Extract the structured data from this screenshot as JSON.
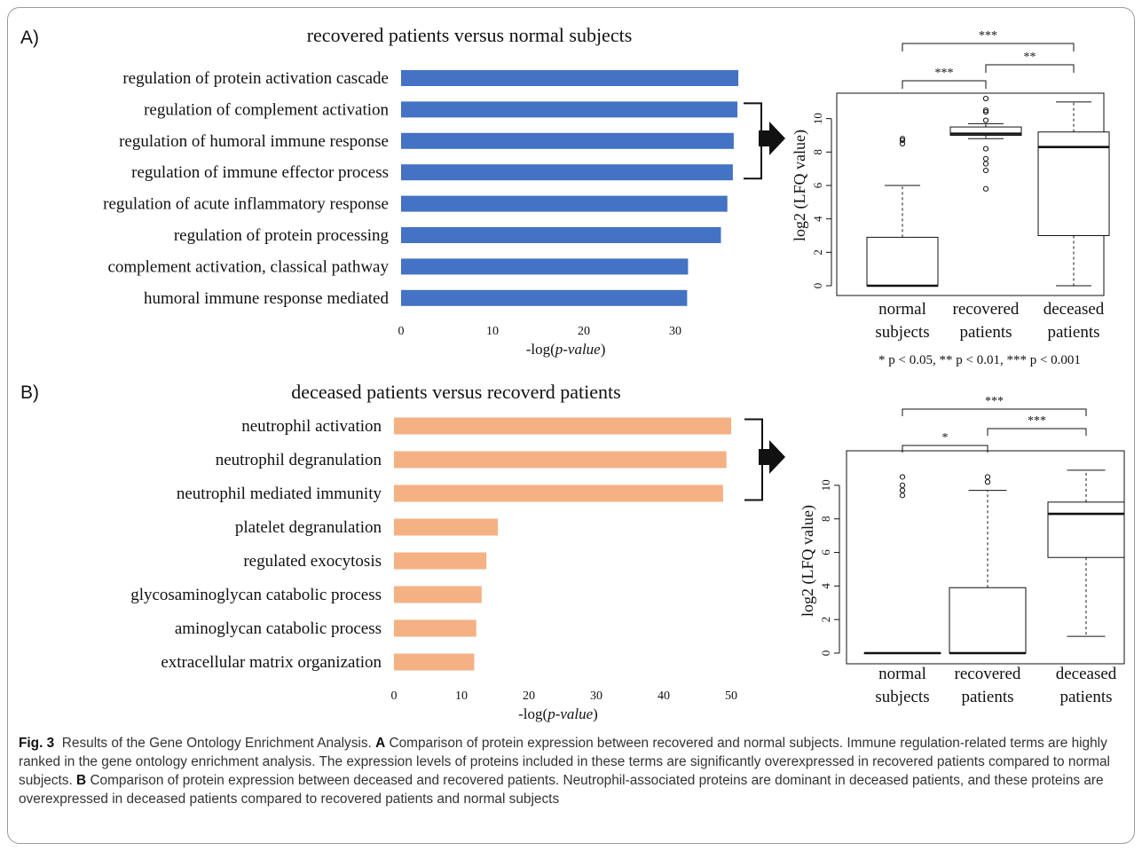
{
  "panels": [
    {
      "letter": "A)",
      "title": "recovered patients versus normal subjects",
      "bar_color": "#4472c4",
      "boxplot_note": "* p < 0.05, ** p < 0.01, *** p < 0.001"
    },
    {
      "letter": "B)",
      "title": "deceased patients versus recoverd patients",
      "bar_color": "#f4b183",
      "boxplot_note": ""
    }
  ],
  "caption": {
    "fig_label": "Fig. 3",
    "text1": "Results of the Gene Ontology Enrichment Analysis.",
    "labelA": "A",
    "textA": "Comparison of protein expression between recovered and normal subjects. Immune regulation-related terms are highly ranked in the gene ontology enrichment analysis. The expression levels of proteins included in these terms are significantly overexpressed in recovered patients compared to normal subjects.",
    "labelB": "B",
    "textB": "Comparison of protein expression between deceased and recovered patients. Neutrophil-associated proteins are dominant in deceased patients, and these proteins are overexpressed in deceased patients compared to recovered patients and normal subjects"
  },
  "chart_data": [
    {
      "type": "bar",
      "orientation": "horizontal",
      "title": "recovered patients versus normal subjects",
      "xlabel": "-log(p-value)",
      "xlim": [
        0,
        37
      ],
      "xticks": [
        0,
        10,
        20,
        30
      ],
      "categories": [
        "regulation of protein activation cascade",
        "regulation of complement activation",
        "regulation of humoral immune response",
        "regulation of immune effector process",
        "regulation of acute inflammatory response",
        "regulation of protein processing",
        "complement activation, classical pathway",
        "humoral immune response mediated"
      ],
      "values": [
        36.9,
        36.8,
        36.4,
        36.3,
        35.7,
        35.0,
        31.4,
        31.3
      ],
      "bracketed_categories": [
        1,
        3
      ]
    },
    {
      "type": "boxplot",
      "ylabel": "log2 (LFQ value)",
      "ylim": [
        0,
        12
      ],
      "yticks": [
        0,
        2,
        4,
        6,
        8,
        10
      ],
      "categories": [
        "normal subjects",
        "recovered patients",
        "deceased patients"
      ],
      "category_lines": [
        [
          "normal",
          "subjects"
        ],
        [
          "recovered",
          "patients"
        ],
        [
          "deceased",
          "patients"
        ]
      ],
      "boxes": [
        {
          "whisker_low": 0,
          "q1": 0,
          "median": 0,
          "q3": 2.9,
          "whisker_high": 6.0,
          "outliers": [
            8.5,
            8.7,
            8.8
          ]
        },
        {
          "whisker_low": 8.8,
          "q1": 9.0,
          "median": 9.1,
          "q3": 9.5,
          "whisker_high": 9.7,
          "outliers": [
            5.8,
            6.9,
            7.3,
            7.6,
            8.2,
            9.9,
            10.4,
            10.5,
            11.2
          ]
        },
        {
          "whisker_low": 0,
          "q1": 3.0,
          "median": 8.3,
          "q3": 9.2,
          "whisker_high": 11.0,
          "outliers": []
        }
      ],
      "significance": [
        {
          "from": 0,
          "to": 1,
          "label": "***"
        },
        {
          "from": 1,
          "to": 2,
          "label": "**"
        },
        {
          "from": 0,
          "to": 2,
          "label": "***"
        }
      ]
    },
    {
      "type": "bar",
      "orientation": "horizontal",
      "title": "deceased patients versus recoverd patients",
      "xlabel": "-log(p-value)",
      "xlim": [
        0,
        50
      ],
      "xticks": [
        0,
        10,
        20,
        30,
        40,
        50
      ],
      "categories": [
        "neutrophil activation",
        "neutrophil degranulation",
        "neutrophil mediated immunity",
        "platelet degranulation",
        "regulated exocytosis",
        "glycosaminoglycan catabolic process",
        "aminoglycan catabolic process",
        "extracellular matrix organization"
      ],
      "values": [
        50.0,
        49.3,
        48.8,
        15.4,
        13.7,
        13.0,
        12.2,
        11.9
      ],
      "bracketed_categories": [
        0,
        2
      ]
    },
    {
      "type": "boxplot",
      "ylabel": "log2 (LFQ value)",
      "ylim": [
        0,
        11
      ],
      "yticks": [
        0,
        2,
        4,
        6,
        8,
        10
      ],
      "categories": [
        "normal subjects",
        "recovered patients",
        "deceased patients"
      ],
      "category_lines": [
        [
          "normal",
          "subjects"
        ],
        [
          "recovered",
          "patients"
        ],
        [
          "deceased",
          "patients"
        ]
      ],
      "boxes": [
        {
          "whisker_low": 0,
          "q1": 0,
          "median": 0,
          "q3": 0,
          "whisker_high": 0,
          "outliers": [
            9.4,
            9.7,
            10.0,
            10.5
          ]
        },
        {
          "whisker_low": 0,
          "q1": 0,
          "median": 0,
          "q3": 3.9,
          "whisker_high": 9.7,
          "outliers": [
            10.2,
            10.5
          ]
        },
        {
          "whisker_low": 1.0,
          "q1": 5.7,
          "median": 8.3,
          "q3": 9.0,
          "whisker_high": 10.9,
          "outliers": []
        }
      ],
      "significance": [
        {
          "from": 0,
          "to": 1,
          "label": "*"
        },
        {
          "from": 1,
          "to": 2,
          "label": "***"
        },
        {
          "from": 0,
          "to": 2,
          "label": "***"
        }
      ]
    }
  ]
}
